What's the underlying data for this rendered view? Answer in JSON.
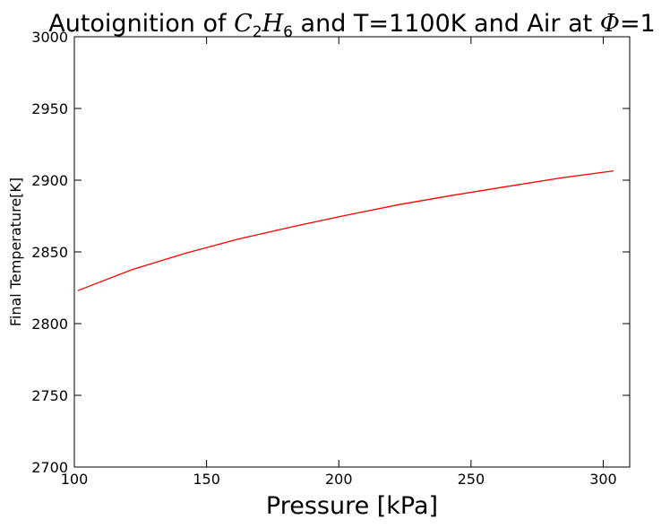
{
  "chart_data": {
    "type": "line",
    "title": {
      "prefix": "Autoignition of ",
      "species_base1": "C",
      "species_sub1": "2",
      "species_base2": "H",
      "species_sub2": "6",
      "suffix": " and T=1100K and Air at ",
      "phi_symbol": "Φ",
      "phi_value": "=1"
    },
    "xlabel": "Pressure [kPa]",
    "ylabel": "Final Temperature[K]",
    "xlim": [
      100,
      310
    ],
    "ylim": [
      2700,
      3000
    ],
    "xticks": [
      100,
      150,
      200,
      250,
      300
    ],
    "yticks": [
      2700,
      2750,
      2800,
      2850,
      2900,
      2950,
      3000
    ],
    "grid": false,
    "series": [
      {
        "color": "#ff0000",
        "x": [
          101.3,
          121.6,
          141.9,
          162.1,
          182.4,
          202.6,
          222.9,
          243.2,
          263.4,
          283.7,
          303.9
        ],
        "y": [
          2823,
          2837.5,
          2849,
          2859,
          2867.5,
          2875.5,
          2883,
          2889.5,
          2895.5,
          2901.5,
          2906.5
        ]
      }
    ]
  }
}
